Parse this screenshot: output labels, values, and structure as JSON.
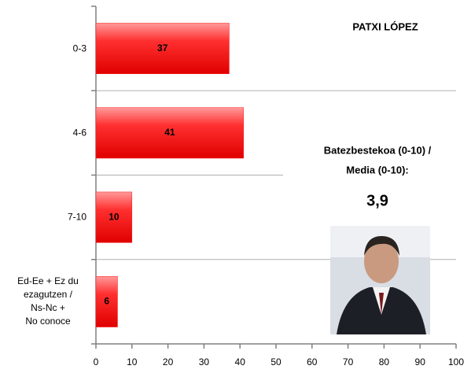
{
  "chart_data": {
    "type": "bar",
    "orientation": "horizontal",
    "title": "PATXI LÓPEZ",
    "annotations": [
      "Batezbestekoa (0-10) /",
      "Media (0-10):",
      "3,9"
    ],
    "categories": [
      "0-3",
      "4-6",
      "7-10",
      "Ed-Ee + Ez du\nezagutzen /\nNs-Nc +\nNo conoce"
    ],
    "values": [
      37,
      41,
      10,
      6
    ],
    "color": "#ff1a1a",
    "xlim": [
      0,
      100
    ],
    "xticks": [
      0,
      10,
      20,
      30,
      40,
      50,
      60,
      70,
      80,
      90,
      100
    ]
  }
}
